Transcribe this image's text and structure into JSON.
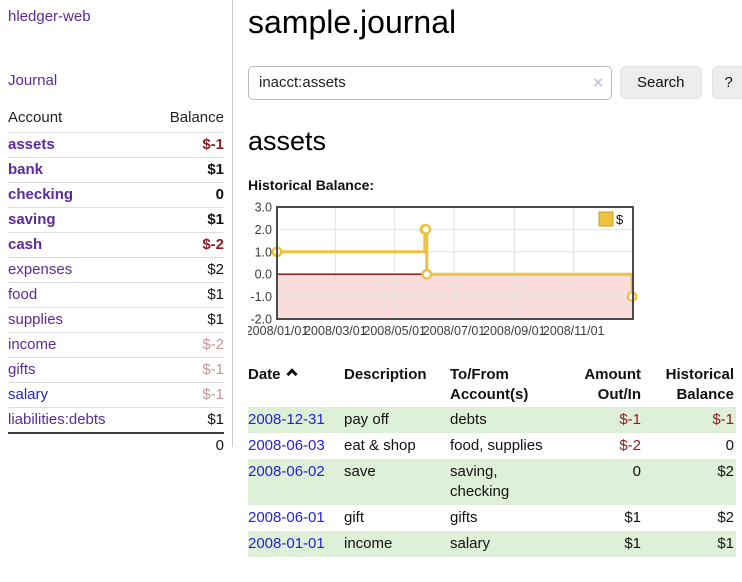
{
  "sidebar": {
    "brand": "hledger-web",
    "journal_link": "Journal",
    "accounts_table": {
      "headers": {
        "account": "Account",
        "balance": "Balance"
      },
      "rows": [
        {
          "name": "assets",
          "balance": "$-1"
        },
        {
          "name": "bank",
          "balance": "$1"
        },
        {
          "name": "checking",
          "balance": "0"
        },
        {
          "name": "saving",
          "balance": "$1"
        },
        {
          "name": "cash",
          "balance": "$-2"
        },
        {
          "name": "expenses",
          "balance": "$2"
        },
        {
          "name": "food",
          "balance": "$1"
        },
        {
          "name": "supplies",
          "balance": "$1"
        },
        {
          "name": "income",
          "balance": "$-2"
        },
        {
          "name": "gifts",
          "balance": "$-1"
        },
        {
          "name": "salary",
          "balance": "$-1"
        },
        {
          "name": "liabilities:debts",
          "balance": "$1"
        }
      ],
      "total": "0"
    }
  },
  "header": {
    "title": "sample.journal"
  },
  "search": {
    "value": "inacct:assets",
    "clear_icon": "×",
    "button_label": "Search",
    "help_label": "?"
  },
  "account_page": {
    "heading": "assets",
    "chart_label": "Historical Balance:"
  },
  "chart_data": {
    "type": "line",
    "step": true,
    "title": "Historical Balance:",
    "series": [
      {
        "name": "$",
        "color": "#edc240",
        "points": [
          [
            "2008-01-01",
            1
          ],
          [
            "2008-06-01",
            2
          ],
          [
            "2008-06-02",
            2
          ],
          [
            "2008-06-03",
            0
          ],
          [
            "2008-12-31",
            -1
          ]
        ]
      }
    ],
    "xlim": [
      "2008-01-01",
      "2009-01-01"
    ],
    "ylim": [
      -2,
      3
    ],
    "y_ticks": [
      3,
      2,
      1,
      0,
      -1,
      -2
    ],
    "x_tick_labels": [
      "2008/01/01",
      "2008/03/01",
      "2008/05/01",
      "2008/07/01",
      "2008/09/01",
      "2008/11/01"
    ],
    "grid": true,
    "legend_position": "top-right",
    "negative_region_fill": "#f9dcdc",
    "zero_line_color": "#8b0000",
    "border_color": "#4a4a4a",
    "gridline_color": "#e3e3e3"
  },
  "register_table": {
    "headers": {
      "date": "Date",
      "description": "Description",
      "accounts": "To/From Account(s)",
      "amount": "Amount Out/In",
      "balance": "Historical Balance"
    },
    "rows": [
      {
        "date": "2008-12-31",
        "description": "pay off",
        "accounts": "debts",
        "amount": "$-1",
        "balance": "$-1"
      },
      {
        "date": "2008-06-03",
        "description": "eat & shop",
        "accounts": "food, supplies",
        "amount": "$-2",
        "balance": "0"
      },
      {
        "date": "2008-06-02",
        "description": "save",
        "accounts": "saving, checking",
        "amount": "0",
        "balance": "$2"
      },
      {
        "date": "2008-06-01",
        "description": "gift",
        "accounts": "gifts",
        "amount": "$1",
        "balance": "$2"
      },
      {
        "date": "2008-01-01",
        "description": "income",
        "accounts": "salary",
        "amount": "$1",
        "balance": "$1"
      }
    ]
  },
  "colors": {
    "link_visited_purple": "#5b2a9e",
    "link_blue": "#2222d6",
    "negative_red": "#8f1a1e",
    "muted_rose": "#c79595",
    "row_green": "#dff0d8",
    "series_gold": "#edc240"
  }
}
